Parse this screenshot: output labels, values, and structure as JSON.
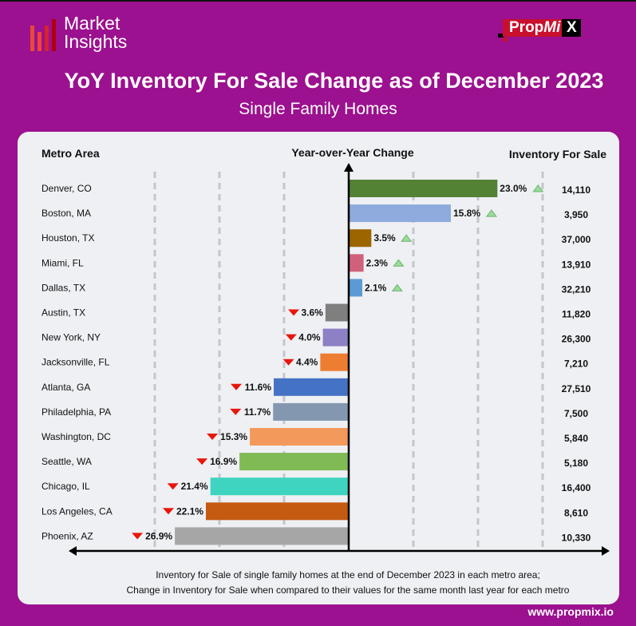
{
  "brand": {
    "logo_line1": "Market",
    "logo_line2": "Insights",
    "company": "PropMiX",
    "website": "www.propmix.io"
  },
  "header": {
    "title": "YoY Inventory For Sale Change as of December 2023",
    "subtitle": "Single Family Homes"
  },
  "colors": {
    "background": "#9b118f",
    "up_arrow": "#9bdc9b",
    "down_arrow": "#e8160c"
  },
  "chart_data": {
    "type": "bar",
    "orientation": "horizontal",
    "column_headers": {
      "metro": "Metro Area",
      "change": "Year-over-Year Change",
      "inventory": "Inventory For Sale"
    },
    "categories": [
      "Denver, CO",
      "Boston, MA",
      "Houston, TX",
      "Miami, FL",
      "Dallas, TX",
      "Austin, TX",
      "New York, NY",
      "Jacksonville, FL",
      "Atlanta, GA",
      "Philadelphia, PA",
      "Washington, DC",
      "Seattle, WA",
      "Chicago, IL",
      "Los Angeles, CA",
      "Phoenix, AZ"
    ],
    "values": [
      23.0,
      15.8,
      3.5,
      2.3,
      2.1,
      -3.6,
      -4.0,
      -4.4,
      -11.6,
      -11.7,
      -15.3,
      -16.9,
      -21.4,
      -22.1,
      -26.9
    ],
    "value_labels": [
      "23.0%",
      "15.8%",
      "3.5%",
      "2.3%",
      "2.1%",
      "3.6%",
      "4.0%",
      "4.4%",
      "11.6%",
      "11.7%",
      "15.3%",
      "16.9%",
      "21.4%",
      "22.1%",
      "26.9%"
    ],
    "inventory": [
      "14,110",
      "3,950",
      "37,000",
      "13,910",
      "32,210",
      "11,820",
      "26,300",
      "7,210",
      "27,510",
      "7,500",
      "5,840",
      "5,180",
      "16,400",
      "8,610",
      "10,330"
    ],
    "bar_colors": [
      "#548235",
      "#8faadc",
      "#9c6500",
      "#d0617d",
      "#5b9bd5",
      "#7f7f7f",
      "#8e80c4",
      "#ed7d31",
      "#4472c4",
      "#8497b0",
      "#f4995c",
      "#7fba55",
      "#3fd4c0",
      "#c55a11",
      "#a6a6a6"
    ],
    "xlim": [
      -30,
      30
    ],
    "gridlines": [
      -30,
      -20,
      -10,
      10,
      20,
      30
    ],
    "notes": [
      "Inventory for Sale of single family homes at the end of December 2023 in each metro area;",
      "Change in Inventory for Sale when compared to their values for the same month last year for each metro"
    ]
  }
}
